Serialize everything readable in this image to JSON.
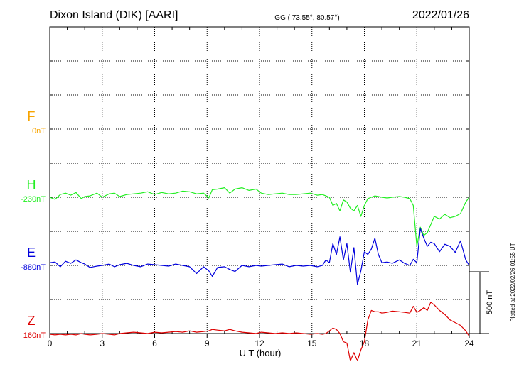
{
  "header": {
    "station": "Dixon Island (DIK)  [AARI]",
    "coords": "GG ( 73.55°,  80.57°)",
    "date": "2022/01/26"
  },
  "side_note": "Plotted at 2022/02/26 01:55 UT",
  "scale_label": "500 nT",
  "chart_data": {
    "type": "line",
    "title": "Dixon Island (DIK)  [AARI]",
    "xlabel": "U T (hour)",
    "ylabel": "",
    "xlim": [
      0,
      24
    ],
    "xticks": [
      0,
      3,
      6,
      9,
      12,
      15,
      18,
      21,
      24
    ],
    "ylim_nT": [
      -1500,
      750
    ],
    "scale_bar_nT": 500,
    "grid": true,
    "series": [
      {
        "name": "F",
        "offset_label": "0nT",
        "color": "#f7a400",
        "baseline_nT": 0,
        "x": [],
        "y": []
      },
      {
        "name": "H",
        "offset_label": "-230nT",
        "color": "#22ee22",
        "baseline_nT": -500,
        "x": [
          0,
          0.3,
          0.6,
          0.9,
          1.2,
          1.5,
          1.8,
          2.0,
          2.3,
          2.7,
          3.0,
          3.4,
          3.7,
          4.0,
          4.4,
          4.8,
          5.2,
          5.6,
          6.0,
          6.4,
          6.8,
          7.2,
          7.6,
          8.0,
          8.4,
          8.8,
          9.1,
          9.3,
          9.6,
          10.0,
          10.3,
          10.6,
          11.0,
          11.4,
          11.8,
          12.1,
          12.5,
          12.9,
          13.3,
          13.7,
          14.1,
          14.5,
          14.9,
          15.3,
          15.6,
          15.8,
          16.0,
          16.2,
          16.4,
          16.6,
          16.8,
          17.0,
          17.2,
          17.4,
          17.6,
          17.8,
          18.0,
          18.2,
          18.4,
          18.6,
          18.8,
          19.0,
          19.3,
          19.6,
          20.0,
          20.3,
          20.6,
          20.8,
          21.0,
          21.2,
          21.4,
          21.6,
          21.8,
          22.0,
          22.3,
          22.6,
          22.9,
          23.2,
          23.5,
          23.8,
          24.0
        ],
        "y": [
          -500,
          -515,
          -480,
          -470,
          -485,
          -465,
          -510,
          -495,
          -490,
          -470,
          -500,
          -475,
          -470,
          -495,
          -480,
          -475,
          -470,
          -460,
          -480,
          -465,
          -475,
          -470,
          -455,
          -460,
          -475,
          -470,
          -505,
          -445,
          -440,
          -430,
          -470,
          -440,
          -430,
          -450,
          -440,
          -470,
          -480,
          -475,
          -470,
          -480,
          -480,
          -475,
          -470,
          -485,
          -480,
          -490,
          -500,
          -560,
          -545,
          -600,
          -520,
          -535,
          -580,
          -600,
          -560,
          -640,
          -560,
          -510,
          -500,
          -490,
          -495,
          -500,
          -505,
          -500,
          -495,
          -500,
          -510,
          -560,
          -860,
          -720,
          -780,
          -760,
          -700,
          -640,
          -660,
          -625,
          -650,
          -640,
          -620,
          -535,
          -500
        ]
      },
      {
        "name": "E",
        "offset_label": "-880nT",
        "color": "#0000dd",
        "baseline_nT": -1000,
        "x": [
          0,
          0.3,
          0.6,
          0.9,
          1.2,
          1.5,
          1.8,
          2.0,
          2.3,
          2.7,
          3.0,
          3.4,
          3.7,
          4.0,
          4.4,
          4.8,
          5.2,
          5.6,
          6.0,
          6.4,
          6.8,
          7.2,
          7.6,
          8.0,
          8.4,
          8.8,
          9.1,
          9.3,
          9.6,
          10.0,
          10.3,
          10.6,
          11.0,
          11.4,
          11.8,
          12.1,
          12.5,
          12.9,
          13.3,
          13.7,
          14.1,
          14.5,
          14.9,
          15.3,
          15.6,
          15.8,
          16.0,
          16.2,
          16.4,
          16.6,
          16.8,
          17.0,
          17.2,
          17.4,
          17.6,
          17.8,
          18.0,
          18.2,
          18.4,
          18.6,
          18.8,
          19.0,
          19.3,
          19.6,
          20.0,
          20.3,
          20.6,
          20.8,
          21.0,
          21.2,
          21.4,
          21.6,
          21.8,
          22.0,
          22.3,
          22.6,
          22.9,
          23.2,
          23.5,
          23.8,
          24.0
        ],
        "y": [
          -980,
          -975,
          -1010,
          -970,
          -985,
          -960,
          -980,
          -990,
          -1015,
          -1005,
          -1000,
          -990,
          -1010,
          -995,
          -985,
          -1000,
          -1010,
          -990,
          -995,
          -1000,
          -1005,
          -990,
          -1000,
          -1010,
          -1060,
          -1010,
          -1040,
          -1080,
          -1015,
          -1010,
          -1030,
          -1045,
          -1000,
          -1010,
          -1000,
          -1005,
          -1000,
          -995,
          -990,
          -1010,
          -1000,
          -1005,
          -1000,
          -1010,
          -1000,
          -960,
          -980,
          -840,
          -920,
          -790,
          -960,
          -840,
          -1050,
          -870,
          -1140,
          -1040,
          -900,
          -920,
          -880,
          -800,
          -920,
          -980,
          -975,
          -985,
          -960,
          -985,
          -1000,
          -955,
          -980,
          -730,
          -800,
          -860,
          -830,
          -840,
          -900,
          -845,
          -860,
          -905,
          -820,
          -960,
          -1000
        ]
      },
      {
        "name": "Z",
        "offset_label": "160nT",
        "color": "#dd0000",
        "baseline_nT": -1500,
        "x": [
          0,
          0.3,
          0.6,
          0.9,
          1.2,
          1.5,
          1.8,
          2.0,
          2.3,
          2.7,
          3.0,
          3.4,
          3.7,
          4.0,
          4.4,
          4.8,
          5.2,
          5.6,
          6.0,
          6.4,
          6.8,
          7.2,
          7.6,
          8.0,
          8.4,
          8.8,
          9.1,
          9.3,
          9.6,
          10.0,
          10.3,
          10.6,
          11.0,
          11.4,
          11.8,
          12.1,
          12.5,
          12.9,
          13.3,
          13.7,
          14.1,
          14.5,
          14.9,
          15.3,
          15.6,
          15.8,
          16.0,
          16.2,
          16.4,
          16.6,
          16.8,
          17.0,
          17.2,
          17.4,
          17.6,
          17.8,
          18.0,
          18.2,
          18.4,
          18.6,
          18.8,
          19.0,
          19.3,
          19.6,
          20.0,
          20.3,
          20.6,
          20.8,
          21.0,
          21.2,
          21.4,
          21.6,
          21.8,
          22.0,
          22.3,
          22.6,
          22.9,
          23.2,
          23.5,
          23.8,
          24.0
        ],
        "y": [
          -1505,
          -1510,
          -1505,
          -1510,
          -1505,
          -1510,
          -1500,
          -1505,
          -1510,
          -1505,
          -1500,
          -1505,
          -1510,
          -1500,
          -1495,
          -1490,
          -1495,
          -1500,
          -1490,
          -1495,
          -1490,
          -1485,
          -1490,
          -1480,
          -1490,
          -1485,
          -1480,
          -1470,
          -1475,
          -1480,
          -1470,
          -1480,
          -1490,
          -1495,
          -1500,
          -1490,
          -1495,
          -1500,
          -1495,
          -1500,
          -1495,
          -1500,
          -1505,
          -1500,
          -1505,
          -1500,
          -1480,
          -1460,
          -1470,
          -1500,
          -1560,
          -1570,
          -1700,
          -1640,
          -1700,
          -1620,
          -1560,
          -1400,
          -1330,
          -1340,
          -1340,
          -1350,
          -1345,
          -1335,
          -1340,
          -1345,
          -1350,
          -1300,
          -1345,
          -1330,
          -1310,
          -1330,
          -1270,
          -1290,
          -1330,
          -1360,
          -1400,
          -1420,
          -1440,
          -1480,
          -1520
        ]
      }
    ]
  }
}
